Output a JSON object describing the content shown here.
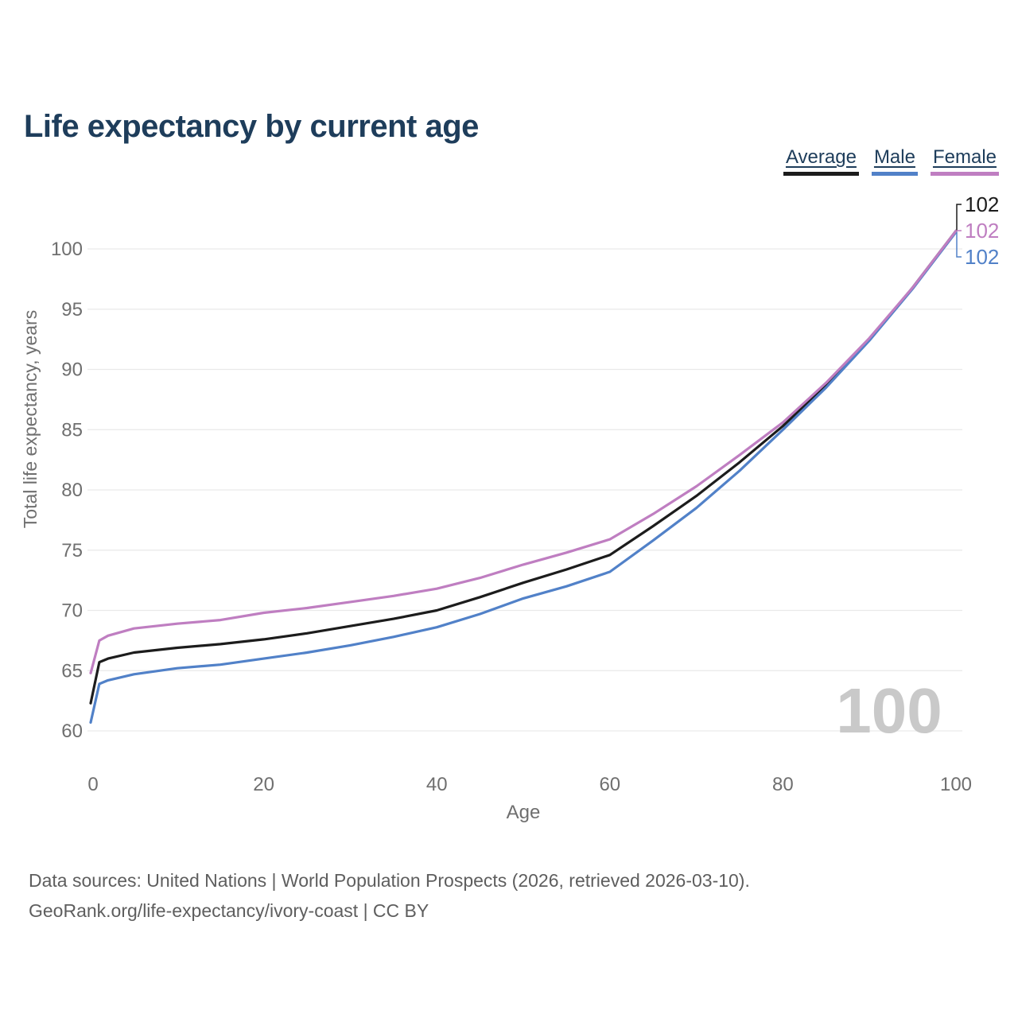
{
  "header": {
    "title": "Life expectancy by current age"
  },
  "legend": {
    "items": [
      {
        "label": "Average",
        "color": "#1c1c1c"
      },
      {
        "label": "Male",
        "color": "#5181c8"
      },
      {
        "label": "Female",
        "color": "#bf7ec1"
      }
    ]
  },
  "chart_data": {
    "type": "line",
    "title": "Life expectancy by current age",
    "xlabel": "Age",
    "ylabel": "Total life expectancy, years",
    "xlim": [
      0,
      100
    ],
    "ylim": [
      60,
      103
    ],
    "x_ticks": [
      0,
      20,
      40,
      60,
      80,
      100
    ],
    "y_ticks": [
      60,
      65,
      70,
      75,
      80,
      85,
      90,
      95,
      100
    ],
    "grid": "horizontal",
    "legend_position": "top-right",
    "watermark": "100",
    "x": [
      0,
      1,
      2,
      5,
      10,
      15,
      20,
      25,
      30,
      35,
      40,
      45,
      50,
      55,
      60,
      65,
      70,
      75,
      80,
      85,
      90,
      95,
      100
    ],
    "series": [
      {
        "name": "Average",
        "color": "#1c1c1c",
        "end_label": "102",
        "values": [
          62.3,
          65.7,
          66.0,
          66.5,
          66.9,
          67.2,
          67.6,
          68.1,
          68.7,
          69.3,
          70.0,
          71.1,
          72.3,
          73.4,
          74.6,
          77.0,
          79.5,
          82.3,
          85.3,
          88.7,
          92.5,
          96.8,
          101.5
        ]
      },
      {
        "name": "Male",
        "color": "#5181c8",
        "end_label": "102",
        "values": [
          60.7,
          63.9,
          64.2,
          64.7,
          65.2,
          65.5,
          66.0,
          66.5,
          67.1,
          67.8,
          68.6,
          69.7,
          71.0,
          72.0,
          73.2,
          75.8,
          78.5,
          81.6,
          85.0,
          88.5,
          92.4,
          96.7,
          101.4
        ]
      },
      {
        "name": "Female",
        "color": "#bf7ec1",
        "end_label": "102",
        "values": [
          64.8,
          67.5,
          67.9,
          68.5,
          68.9,
          69.2,
          69.8,
          70.2,
          70.7,
          71.2,
          71.8,
          72.7,
          73.8,
          74.8,
          75.9,
          78.0,
          80.3,
          82.9,
          85.6,
          88.9,
          92.6,
          96.8,
          101.5
        ]
      }
    ]
  },
  "footer": {
    "line1": "Data sources: United Nations | World Population Prospects (2026, retrieved 2026-03-10).",
    "line2": "GeoRank.org/life-expectancy/ivory-coast | CC BY"
  }
}
